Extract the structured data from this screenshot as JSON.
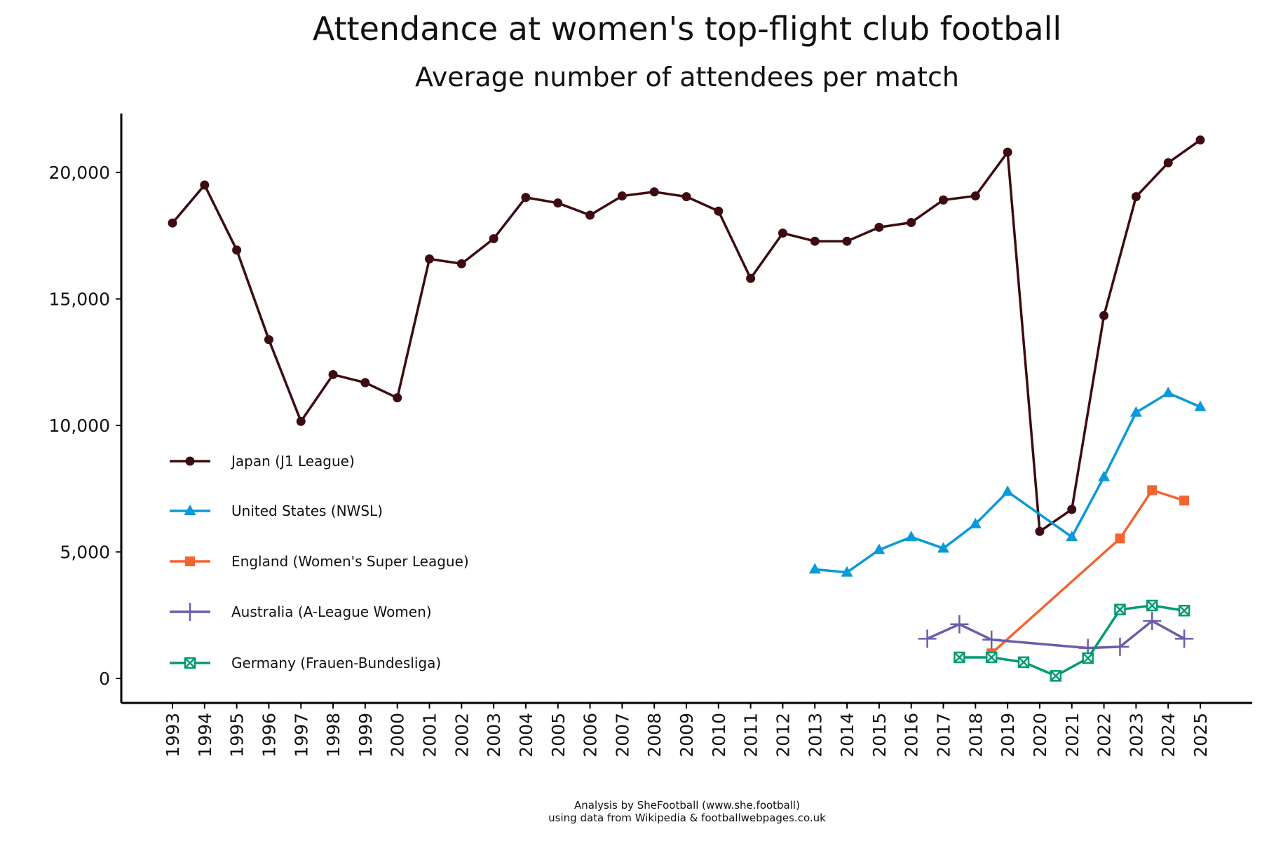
{
  "chart_data": {
    "type": "line",
    "title": "Attendance at women's top-flight club football",
    "subtitle": "Average number of attendees per match",
    "footer": [
      "Analysis by SheFootball (www.she.football)",
      "using data from Wikipedia & footballwebpages.co.uk"
    ],
    "xlabel": "",
    "ylabel": "",
    "xlim": [
      1993,
      2025
    ],
    "ylim": [
      -1000,
      22300
    ],
    "x_ticks": [
      1993,
      1994,
      1995,
      1996,
      1997,
      1998,
      1999,
      2000,
      2001,
      2002,
      2003,
      2004,
      2005,
      2006,
      2007,
      2008,
      2009,
      2010,
      2011,
      2012,
      2013,
      2014,
      2015,
      2016,
      2017,
      2018,
      2019,
      2020,
      2021,
      2022,
      2023,
      2024,
      2025
    ],
    "y_ticks": [
      0,
      5000,
      10000,
      15000,
      20000
    ],
    "y_tick_labels": [
      "0",
      "5,000",
      "10,000",
      "15,000",
      "20,000"
    ],
    "grid": false,
    "legend_position": "center-left",
    "series": [
      {
        "name": "Japan (J1 League)",
        "color": "#3d0c11",
        "marker": "circle",
        "x": [
          1993,
          1994,
          1995,
          1996,
          1997,
          1998,
          1999,
          2000,
          2001,
          2002,
          2003,
          2004,
          2005,
          2006,
          2007,
          2008,
          2009,
          2010,
          2011,
          2012,
          2013,
          2014,
          2015,
          2016,
          2017,
          2018,
          2019,
          2020,
          2021,
          2022,
          2023,
          2024,
          2025
        ],
        "y": [
          18000,
          19500,
          16930,
          13390,
          10160,
          12010,
          11690,
          11090,
          16580,
          16390,
          17380,
          19010,
          18790,
          18310,
          19070,
          19230,
          19040,
          18470,
          15810,
          17600,
          17280,
          17280,
          17830,
          18020,
          18910,
          19070,
          20800,
          5810,
          6680,
          14340,
          19040,
          20380,
          21280
        ]
      },
      {
        "name": "United States (NWSL)",
        "color": "#0a9ad7",
        "marker": "triangle",
        "x": [
          2013,
          2014,
          2015,
          2016,
          2017,
          2018,
          2019,
          2021,
          2022,
          2023,
          2024,
          2025
        ],
        "y": [
          4310,
          4190,
          5080,
          5590,
          5140,
          6100,
          7380,
          5590,
          7960,
          10510,
          11280,
          10730
        ]
      },
      {
        "name": "England (Women's Super League)",
        "color": "#f26430",
        "marker": "square",
        "x": [
          2018.5,
          2022.5,
          2023.5,
          2024.5
        ],
        "y": [
          990,
          5530,
          7440,
          7030
        ]
      },
      {
        "name": "Australia (A-League Women)",
        "color": "#6a5eab",
        "marker": "plus",
        "x": [
          2016.5,
          2017.5,
          2018.5,
          2021.5,
          2022.5,
          2023.5,
          2024.5
        ],
        "y": [
          1570,
          2140,
          1530,
          1200,
          1250,
          2270,
          1570
        ]
      },
      {
        "name": "Germany (Frauen-Bundesliga)",
        "color": "#009b72",
        "marker": "square-x",
        "x": [
          2017.5,
          2018.5,
          2019.5,
          2020.5,
          2021.5,
          2022.5,
          2023.5,
          2024.5
        ],
        "y": [
          830,
          830,
          640,
          100,
          800,
          2720,
          2880,
          2680
        ]
      }
    ]
  }
}
